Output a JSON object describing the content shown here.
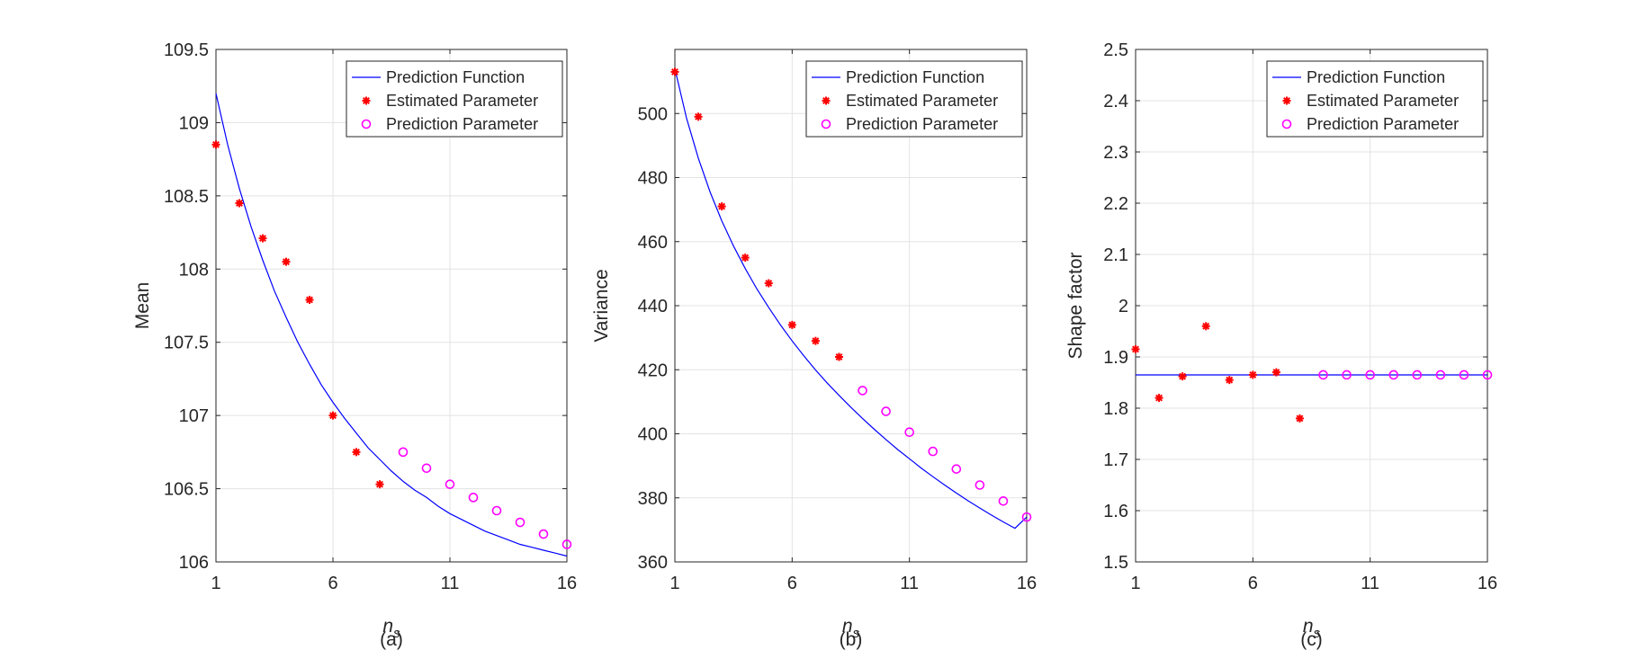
{
  "chart_data": [
    {
      "type": "line",
      "caption": "(a)",
      "xlabel_base": "n",
      "xlabel_sub": "s",
      "ylabel": "Mean",
      "xlim": [
        1,
        16
      ],
      "ylim": [
        106,
        109.5
      ],
      "xticks": [
        1,
        6,
        11,
        16
      ],
      "yticks": [
        106,
        106.5,
        107,
        107.5,
        108,
        108.5,
        109,
        109.5
      ],
      "ytick_labels": [
        "106",
        "106.5",
        "107",
        "107.5",
        "108",
        "108.5",
        "109",
        "109.5"
      ],
      "grid": true,
      "legend": [
        "Prediction Function",
        "Estimated Parameter",
        "Prediction Parameter"
      ],
      "legend_position": "top-right",
      "series": [
        {
          "name": "Prediction Function",
          "kind": "line",
          "x": [
            1,
            1.5,
            2,
            2.5,
            3,
            3.5,
            4,
            4.5,
            5,
            5.5,
            6,
            6.5,
            7,
            7.5,
            8,
            8.5,
            9,
            9.5,
            10,
            10.5,
            11,
            11.5,
            12,
            12.5,
            13,
            13.5,
            14,
            14.5,
            15,
            15.5,
            16
          ],
          "y": [
            109.2,
            108.85,
            108.55,
            108.29,
            108.06,
            107.85,
            107.67,
            107.5,
            107.35,
            107.21,
            107.09,
            106.98,
            106.88,
            106.78,
            106.7,
            106.62,
            106.55,
            106.49,
            106.44,
            106.38,
            106.33,
            106.29,
            106.25,
            106.21,
            106.18,
            106.15,
            106.12,
            106.1,
            106.08,
            106.06,
            106.04
          ]
        },
        {
          "name": "Estimated Parameter",
          "kind": "star",
          "x": [
            1,
            2,
            3,
            4,
            5,
            6,
            7,
            8
          ],
          "y": [
            108.85,
            108.45,
            108.21,
            108.05,
            107.79,
            107.0,
            106.75,
            106.53
          ]
        },
        {
          "name": "Prediction Parameter",
          "kind": "circle",
          "x": [
            9,
            10,
            11,
            12,
            13,
            14,
            15,
            16
          ],
          "y": [
            106.75,
            106.64,
            106.53,
            106.44,
            106.35,
            106.27,
            106.19,
            106.12
          ]
        }
      ]
    },
    {
      "type": "line",
      "caption": "(b)",
      "xlabel_base": "n",
      "xlabel_sub": "s",
      "ylabel": "Variance",
      "xlim": [
        1,
        16
      ],
      "ylim": [
        360,
        520
      ],
      "xticks": [
        1,
        6,
        11,
        16
      ],
      "yticks": [
        360,
        380,
        400,
        420,
        440,
        460,
        480,
        500
      ],
      "ytick_labels": [
        "360",
        "380",
        "400",
        "420",
        "440",
        "460",
        "480",
        "500"
      ],
      "grid": true,
      "legend": [
        "Prediction Function",
        "Estimated Parameter",
        "Prediction Parameter"
      ],
      "legend_position": "top-right",
      "series": [
        {
          "name": "Prediction Function",
          "kind": "line",
          "x": [
            1,
            1.5,
            2,
            2.5,
            3,
            3.5,
            4,
            4.5,
            5,
            5.5,
            6,
            6.5,
            7,
            7.5,
            8,
            8.5,
            9,
            9.5,
            10,
            10.5,
            11,
            11.5,
            12,
            12.5,
            13,
            13.5,
            14,
            14.5,
            15,
            15.5,
            16
          ],
          "y": [
            514,
            498.5,
            486,
            475.5,
            466.5,
            458.6,
            451.6,
            445.2,
            439.4,
            434.0,
            429.0,
            424.3,
            419.9,
            415.8,
            412.0,
            408.3,
            404.8,
            401.4,
            398.2,
            395.1,
            392.2,
            389.3,
            386.6,
            384.0,
            381.5,
            379.1,
            376.8,
            374.6,
            372.5,
            370.5,
            374.0
          ]
        },
        {
          "name": "Estimated Parameter",
          "kind": "star",
          "x": [
            1,
            2,
            3,
            4,
            5,
            6,
            7,
            8
          ],
          "y": [
            513,
            499,
            471,
            455,
            447,
            434,
            429,
            424
          ]
        },
        {
          "name": "Prediction Parameter",
          "kind": "circle",
          "x": [
            9,
            10,
            11,
            12,
            13,
            14,
            15,
            16
          ],
          "y": [
            413.5,
            407,
            400.5,
            394.5,
            389,
            384,
            379,
            374
          ]
        }
      ]
    },
    {
      "type": "line",
      "caption": "(c)",
      "xlabel_base": "n",
      "xlabel_sub": "s",
      "ylabel": "Shape factor",
      "xlim": [
        1,
        16
      ],
      "ylim": [
        1.5,
        2.5
      ],
      "xticks": [
        1,
        6,
        11,
        16
      ],
      "yticks": [
        1.5,
        1.6,
        1.7,
        1.8,
        1.9,
        2.0,
        2.1,
        2.2,
        2.3,
        2.4,
        2.5
      ],
      "ytick_labels": [
        "1.5",
        "1.6",
        "1.7",
        "1.8",
        "1.9",
        "2",
        "2.1",
        "2.2",
        "2.3",
        "2.4",
        "2.5"
      ],
      "grid": true,
      "legend": [
        "Prediction Function",
        "Estimated Parameter",
        "Prediction Parameter"
      ],
      "legend_position": "top-right",
      "series": [
        {
          "name": "Prediction Function",
          "kind": "line",
          "x": [
            1,
            16
          ],
          "y": [
            1.865,
            1.865
          ]
        },
        {
          "name": "Estimated Parameter",
          "kind": "star",
          "x": [
            1,
            2,
            3,
            4,
            5,
            6,
            7,
            8
          ],
          "y": [
            1.915,
            1.82,
            1.862,
            1.96,
            1.855,
            1.865,
            1.87,
            1.78
          ]
        },
        {
          "name": "Prediction Parameter",
          "kind": "circle",
          "x": [
            9,
            10,
            11,
            12,
            13,
            14,
            15,
            16
          ],
          "y": [
            1.865,
            1.865,
            1.865,
            1.865,
            1.865,
            1.865,
            1.865,
            1.865
          ]
        }
      ]
    }
  ],
  "colors": {
    "line": "#0000ff",
    "star": "#ff0000",
    "circle": "#ff00ff",
    "grid": "#e3e3e3",
    "axis": "#262626"
  }
}
